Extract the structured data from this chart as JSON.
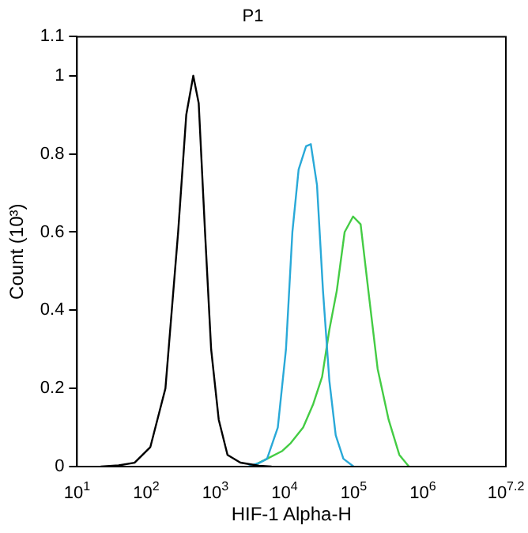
{
  "chart_data": {
    "type": "line",
    "title": "P1",
    "xlabel": "HIF-1 Alpha-H",
    "ylabel": "Count (10³)",
    "log": "x",
    "grid": false,
    "legend": false,
    "marker": "none",
    "line_style": "solid",
    "xlim": [
      10,
      15848932
    ],
    "xticks": [
      {
        "value": 10,
        "label": "10$^{1}$"
      },
      {
        "value": 100,
        "label": "10$^{2}$"
      },
      {
        "value": 1000,
        "label": "10$^{3}$"
      },
      {
        "value": 10000,
        "label": "10$^{4}$"
      },
      {
        "value": 100000,
        "label": "10$^{5}$"
      },
      {
        "value": 1000000,
        "label": "10$^{6}$"
      },
      {
        "value": 15848932,
        "label": "10$^{7.2}$"
      }
    ],
    "ylim": [
      0,
      1.1
    ],
    "yticks": [
      0,
      0.2,
      0.4,
      0.6,
      0.8,
      1,
      1.1
    ],
    "series": [
      {
        "color": "#000000",
        "x": [
          22,
          40,
          68,
          115,
          190,
          290,
          380,
          480,
          575,
          710,
          870,
          1120,
          1500,
          2300,
          4300,
          6500
        ],
        "values": [
          0,
          0.003,
          0.01,
          0.05,
          0.2,
          0.6,
          0.9,
          1.0,
          0.93,
          0.6,
          0.3,
          0.12,
          0.03,
          0.01,
          0.002,
          0
        ]
      },
      {
        "color": "#29a9d8",
        "x": [
          3000,
          4400,
          5600,
          8000,
          10500,
          13000,
          16000,
          20500,
          24000,
          29500,
          36000,
          44500,
          55000,
          71000,
          100000
        ],
        "values": [
          0,
          0.01,
          0.02,
          0.1,
          0.3,
          0.6,
          0.76,
          0.82,
          0.825,
          0.72,
          0.45,
          0.22,
          0.08,
          0.02,
          0
        ]
      },
      {
        "color": "#44cc44",
        "x": [
          3300,
          5600,
          9300,
          12300,
          18600,
          26000,
          35000,
          44500,
          57000,
          74000,
          98000,
          126000,
          163000,
          222000,
          320000,
          457000,
          630000
        ],
        "values": [
          0,
          0.02,
          0.04,
          0.06,
          0.1,
          0.16,
          0.23,
          0.35,
          0.45,
          0.6,
          0.64,
          0.62,
          0.45,
          0.25,
          0.12,
          0.03,
          0
        ]
      }
    ]
  }
}
